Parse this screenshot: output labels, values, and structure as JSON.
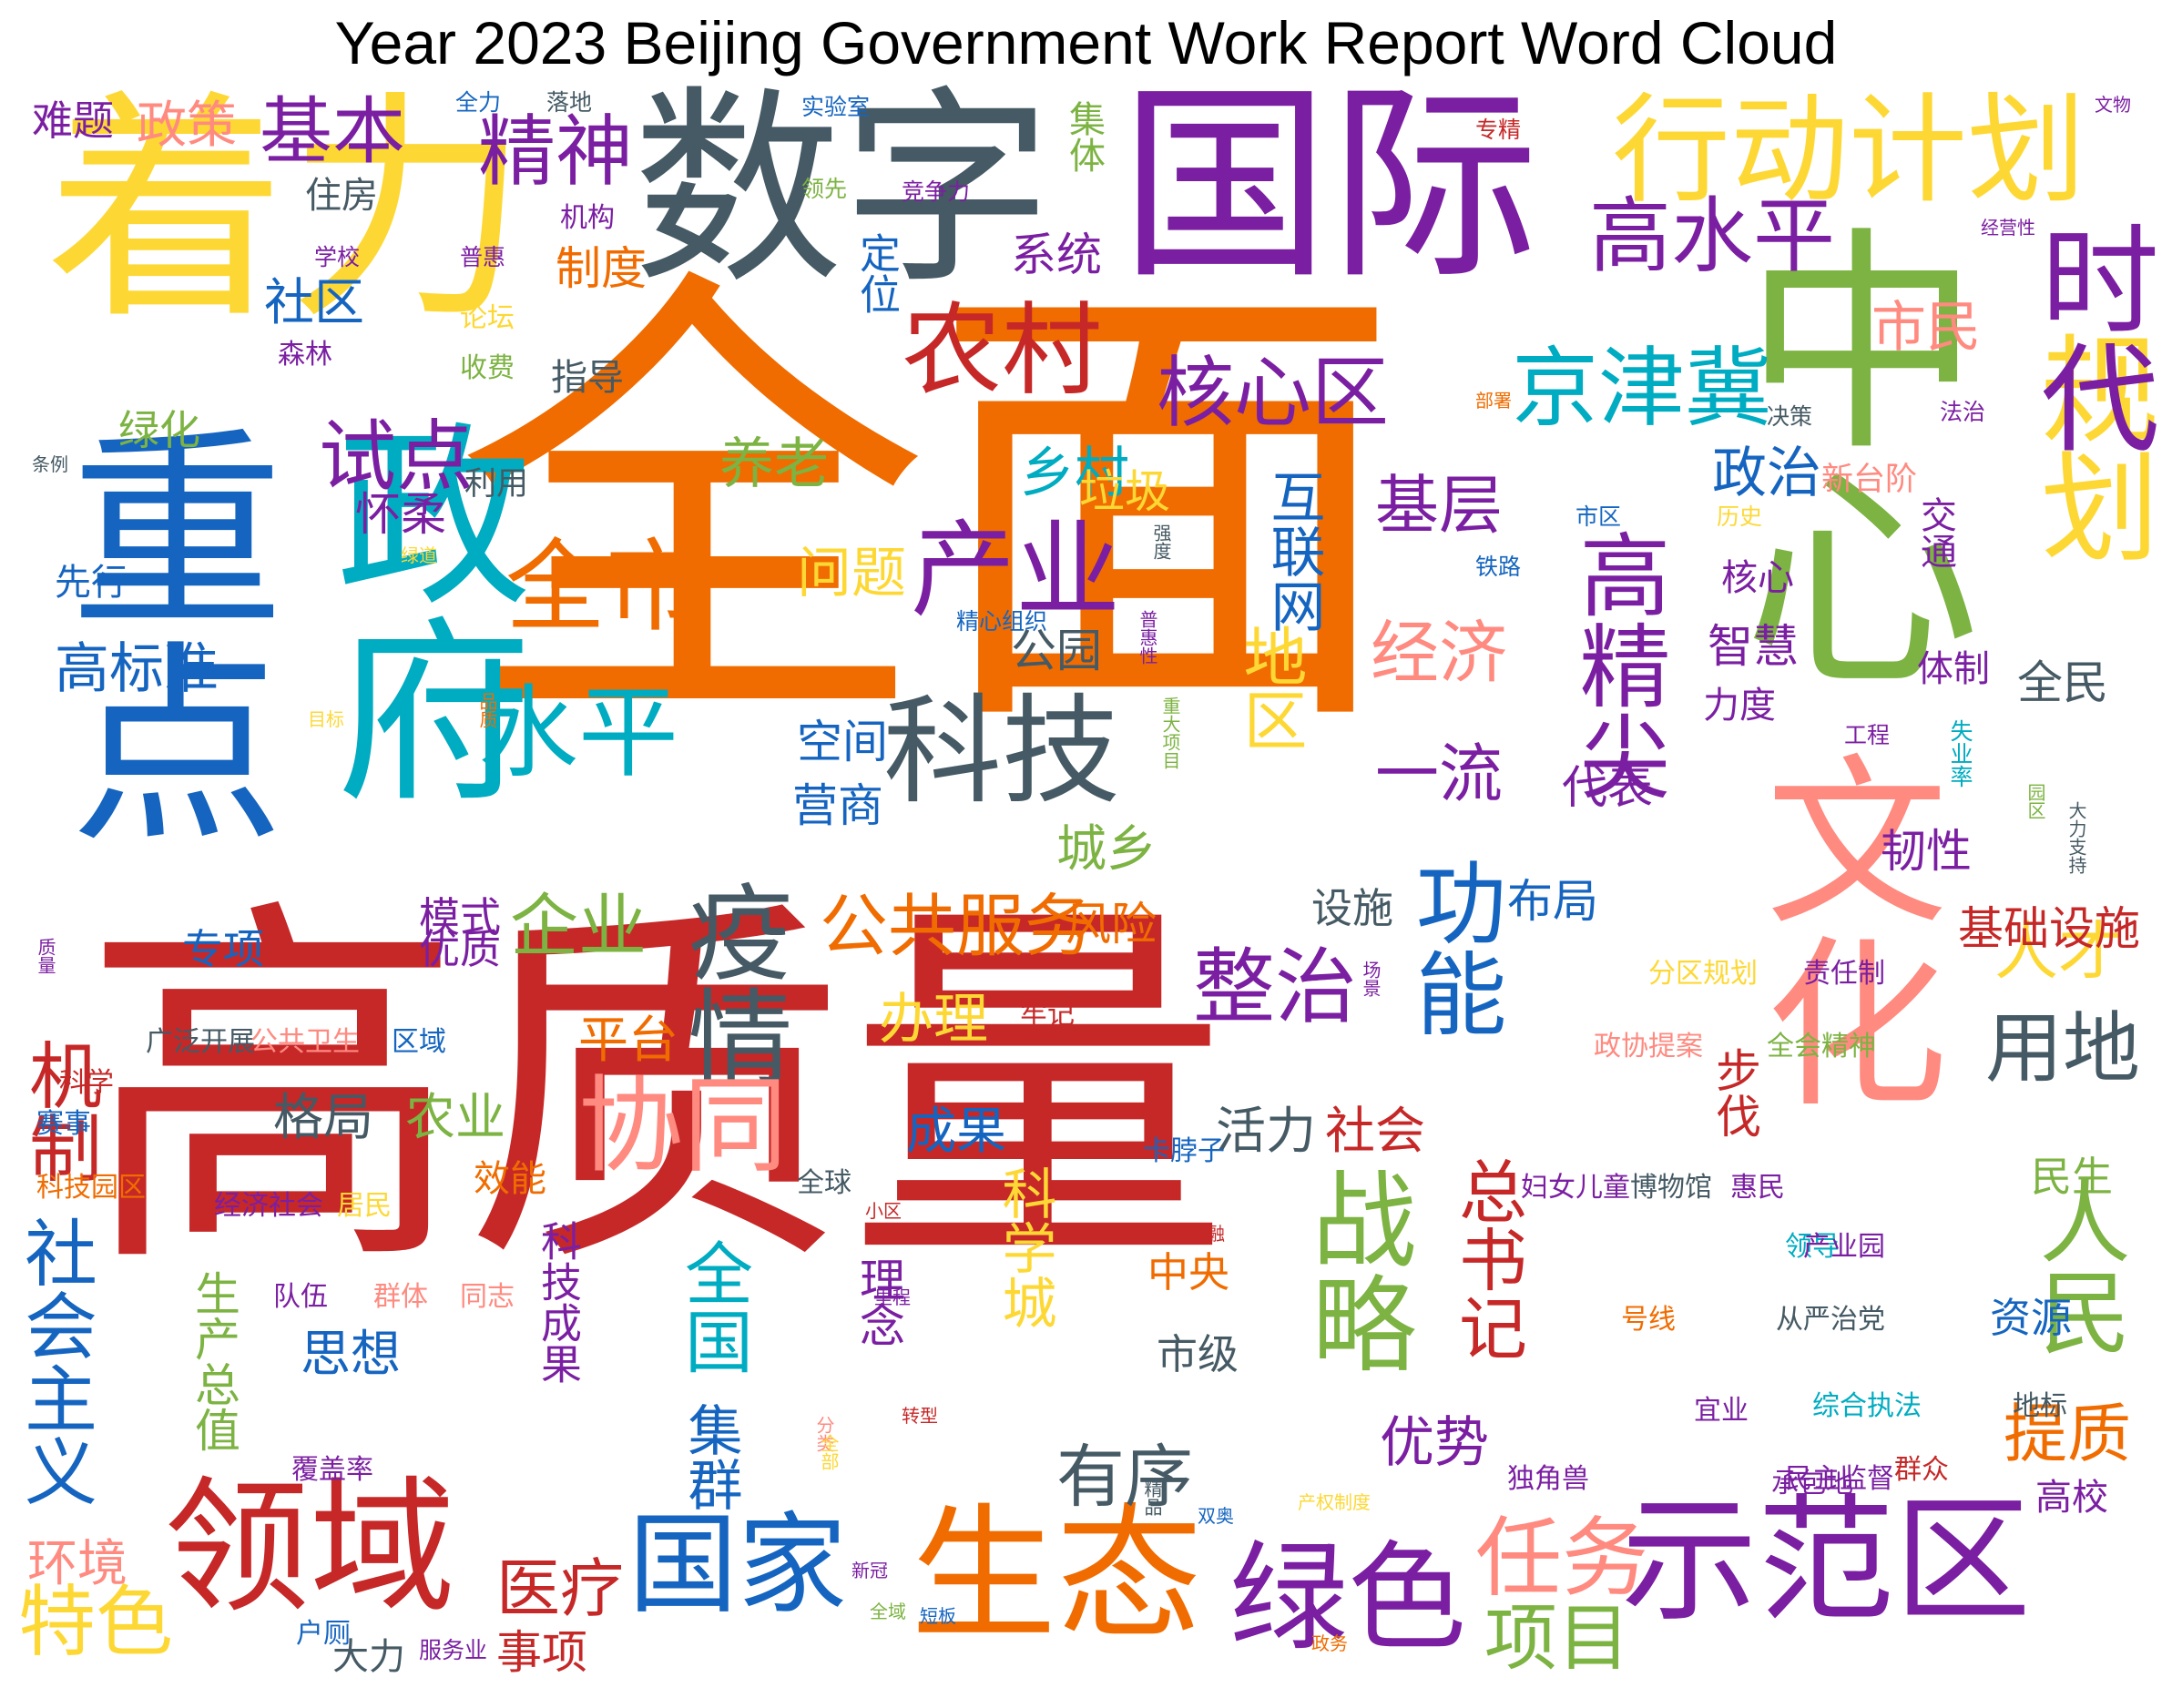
{
  "title": "Year 2023 Beijing Government Work Report Word Cloud",
  "colors": {
    "background": "#ffffff",
    "title": "#000000",
    "palette": [
      "#f06c00",
      "#c62828",
      "#fdd835",
      "#455a64",
      "#7b1fa2",
      "#1565c0",
      "#00acc1",
      "#7cb342",
      "#ff8a80"
    ]
  },
  "words": [
    {
      "text": "全面",
      "color": "#f06c00",
      "vertical": false
    },
    {
      "text": "高质量",
      "color": "#c62828",
      "vertical": false
    },
    {
      "text": "重点",
      "color": "#1565c0",
      "vertical": true
    },
    {
      "text": "着力",
      "color": "#fdd835",
      "vertical": false
    },
    {
      "text": "数字",
      "color": "#455a64",
      "vertical": false
    },
    {
      "text": "国际",
      "color": "#7b1fa2",
      "vertical": false
    },
    {
      "text": "中心",
      "color": "#7cb342",
      "vertical": true
    },
    {
      "text": "政府",
      "color": "#00acc1",
      "vertical": true
    },
    {
      "text": "文化",
      "color": "#ff8a80",
      "vertical": true
    },
    {
      "text": "示范区",
      "color": "#7b1fa2",
      "vertical": false
    },
    {
      "text": "生态",
      "color": "#f06c00",
      "vertical": false
    },
    {
      "text": "领域",
      "color": "#c62828",
      "vertical": false
    },
    {
      "text": "行动计划",
      "color": "#fdd835",
      "vertical": false
    },
    {
      "text": "规划",
      "color": "#fdd835",
      "vertical": true
    },
    {
      "text": "时代",
      "color": "#7b1fa2",
      "vertical": true
    },
    {
      "text": "科技",
      "color": "#455a64",
      "vertical": false
    },
    {
      "text": "绿色",
      "color": "#7b1fa2",
      "vertical": false
    },
    {
      "text": "战略",
      "color": "#7cb342",
      "vertical": true
    },
    {
      "text": "国家",
      "color": "#1565c0",
      "vertical": false
    },
    {
      "text": "疫情",
      "color": "#455a64",
      "vertical": true
    },
    {
      "text": "协同",
      "color": "#ff8a80",
      "vertical": false
    },
    {
      "text": "功能",
      "color": "#1565c0",
      "vertical": true
    },
    {
      "text": "人民",
      "color": "#7cb342",
      "vertical": true
    },
    {
      "text": "全市",
      "color": "#f06c00",
      "vertical": false
    },
    {
      "text": "水平",
      "color": "#00acc1",
      "vertical": false
    },
    {
      "text": "产业",
      "color": "#7b1fa2",
      "vertical": false
    },
    {
      "text": "农村",
      "color": "#c62828",
      "vertical": false
    },
    {
      "text": "京津冀",
      "color": "#00acc1",
      "vertical": false
    },
    {
      "text": "核心区",
      "color": "#7b1fa2",
      "vertical": false
    },
    {
      "text": "高水平",
      "color": "#7b1fa2",
      "vertical": false
    },
    {
      "text": "整治",
      "color": "#7b1fa2",
      "vertical": false
    },
    {
      "text": "任务",
      "color": "#ff8a80",
      "vertical": false
    },
    {
      "text": "精神",
      "color": "#7b1fa2",
      "vertical": false
    },
    {
      "text": "基本",
      "color": "#7b1fa2",
      "vertical": false
    },
    {
      "text": "高精尖",
      "color": "#7b1fa2",
      "vertical": true
    },
    {
      "text": "用地",
      "color": "#455a64",
      "vertical": false
    },
    {
      "text": "试点",
      "color": "#7b1fa2",
      "vertical": false
    },
    {
      "text": "机制",
      "color": "#c62828",
      "vertical": true
    },
    {
      "text": "社会主义",
      "color": "#1565c0",
      "vertical": true
    },
    {
      "text": "企业",
      "color": "#7cb342",
      "vertical": false
    },
    {
      "text": "总书记",
      "color": "#c62828",
      "vertical": true
    },
    {
      "text": "项目",
      "color": "#7cb342",
      "vertical": false
    },
    {
      "text": "特色",
      "color": "#fdd835",
      "vertical": false
    },
    {
      "text": "全国",
      "color": "#00acc1",
      "vertical": true
    },
    {
      "text": "市民",
      "color": "#ff8a80",
      "vertical": false
    },
    {
      "text": "政治",
      "color": "#1565c0",
      "vertical": false
    },
    {
      "text": "乡村",
      "color": "#00acc1",
      "vertical": false
    },
    {
      "text": "公共服务",
      "color": "#f06c00",
      "vertical": false
    },
    {
      "text": "有序",
      "color": "#455a64",
      "vertical": false
    },
    {
      "text": "提质",
      "color": "#f06c00",
      "vertical": false
    },
    {
      "text": "人才",
      "color": "#fdd835",
      "vertical": false
    },
    {
      "text": "医疗",
      "color": "#c62828",
      "vertical": false
    },
    {
      "text": "优势",
      "color": "#7b1fa2",
      "vertical": false
    },
    {
      "text": "经济",
      "color": "#ff8a80",
      "vertical": false
    },
    {
      "text": "基层",
      "color": "#7b1fa2",
      "vertical": false
    },
    {
      "text": "一流",
      "color": "#7b1fa2",
      "vertical": false
    },
    {
      "text": "地区",
      "color": "#fdd835",
      "vertical": true
    },
    {
      "text": "互联网",
      "color": "#1565c0",
      "vertical": true
    },
    {
      "text": "养老",
      "color": "#7cb342",
      "vertical": false
    },
    {
      "text": "社区",
      "color": "#1565c0",
      "vertical": false
    },
    {
      "text": "政策",
      "color": "#ff8a80",
      "vertical": false
    },
    {
      "text": "集群",
      "color": "#1565c0",
      "vertical": true
    },
    {
      "text": "科学城",
      "color": "#fdd835",
      "vertical": true
    },
    {
      "text": "格局",
      "color": "#455a64",
      "vertical": false
    },
    {
      "text": "农业",
      "color": "#7cb342",
      "vertical": false
    },
    {
      "text": "思想",
      "color": "#1565c0",
      "vertical": false
    },
    {
      "text": "成果",
      "color": "#1565c0",
      "vertical": false
    },
    {
      "text": "活力",
      "color": "#455a64",
      "vertical": false
    },
    {
      "text": "社会",
      "color": "#c62828",
      "vertical": false
    },
    {
      "text": "办理",
      "color": "#fdd835",
      "vertical": false
    },
    {
      "text": "平台",
      "color": "#f06c00",
      "vertical": false
    },
    {
      "text": "城乡",
      "color": "#7cb342",
      "vertical": false
    },
    {
      "text": "问题",
      "color": "#fdd835",
      "vertical": false
    },
    {
      "text": "公园",
      "color": "#455a64",
      "vertical": false
    },
    {
      "text": "空间",
      "color": "#1565c0",
      "vertical": false
    },
    {
      "text": "营商",
      "color": "#1565c0",
      "vertical": false
    },
    {
      "text": "高标准",
      "color": "#1565c0",
      "vertical": false
    },
    {
      "text": "怀柔",
      "color": "#7b1fa2",
      "vertical": false
    },
    {
      "text": "系统",
      "color": "#7b1fa2",
      "vertical": false
    },
    {
      "text": "定位",
      "color": "#1565c0",
      "vertical": true
    },
    {
      "text": "制度",
      "color": "#f06c00",
      "vertical": false
    },
    {
      "text": "垃圾",
      "color": "#fdd835",
      "vertical": false
    },
    {
      "text": "全民",
      "color": "#455a64",
      "vertical": false
    },
    {
      "text": "代表",
      "color": "#7b1fa2",
      "vertical": false
    },
    {
      "text": "智慧",
      "color": "#7b1fa2",
      "vertical": false
    },
    {
      "text": "韧性",
      "color": "#7b1fa2",
      "vertical": false
    },
    {
      "text": "步伐",
      "color": "#c62828",
      "vertical": true
    },
    {
      "text": "基础设施",
      "color": "#c62828",
      "vertical": false
    },
    {
      "text": "布局",
      "color": "#1565c0",
      "vertical": false
    },
    {
      "text": "设施",
      "color": "#455a64",
      "vertical": false
    },
    {
      "text": "风险",
      "color": "#f06c00",
      "vertical": false
    },
    {
      "text": "模式",
      "color": "#7b1fa2",
      "vertical": false
    },
    {
      "text": "优质",
      "color": "#7b1fa2",
      "vertical": false
    },
    {
      "text": "专项",
      "color": "#1565c0",
      "vertical": false
    },
    {
      "text": "环境",
      "color": "#ff8a80",
      "vertical": false
    },
    {
      "text": "大力",
      "color": "#455a64",
      "vertical": false
    },
    {
      "text": "事项",
      "color": "#c62828",
      "vertical": false
    },
    {
      "text": "资源",
      "color": "#1565c0",
      "vertical": false
    },
    {
      "text": "市级",
      "color": "#455a64",
      "vertical": false
    },
    {
      "text": "中央",
      "color": "#f06c00",
      "vertical": false
    },
    {
      "text": "理念",
      "color": "#7b1fa2",
      "vertical": true
    },
    {
      "text": "科技成果",
      "color": "#7b1fa2",
      "vertical": true
    },
    {
      "text": "生产总值",
      "color": "#7cb342",
      "vertical": true
    },
    {
      "text": "高校",
      "color": "#7b1fa2",
      "vertical": false
    },
    {
      "text": "民生",
      "color": "#7cb342",
      "vertical": false
    },
    {
      "text": "体制",
      "color": "#7b1fa2",
      "vertical": false
    },
    {
      "text": "交通",
      "color": "#7b1fa2",
      "vertical": true
    },
    {
      "text": "力度",
      "color": "#7b1fa2",
      "vertical": false
    },
    {
      "text": "绿化",
      "color": "#7cb342",
      "vertical": false
    },
    {
      "text": "难题",
      "color": "#7b1fa2",
      "vertical": false
    },
    {
      "text": "住房",
      "color": "#455a64",
      "vertical": false
    },
    {
      "text": "集体",
      "color": "#7cb342",
      "vertical": true
    },
    {
      "text": "指导",
      "color": "#455a64",
      "vertical": false
    },
    {
      "text": "利用",
      "color": "#455a64",
      "vertical": false
    },
    {
      "text": "先行",
      "color": "#1565c0",
      "vertical": false
    },
    {
      "text": "效能",
      "color": "#f06c00",
      "vertical": false
    },
    {
      "text": "核心",
      "color": "#7b1fa2",
      "vertical": false
    },
    {
      "text": "新台阶",
      "color": "#ff8a80",
      "vertical": false
    },
    {
      "text": "政协提案",
      "color": "#ff8a80",
      "vertical": false
    },
    {
      "text": "全会精神",
      "color": "#7cb342",
      "vertical": false
    },
    {
      "text": "分区规划",
      "color": "#fdd835",
      "vertical": false
    },
    {
      "text": "责任制",
      "color": "#7b1fa2",
      "vertical": false
    },
    {
      "text": "领导",
      "color": "#00acc1",
      "vertical": false
    },
    {
      "text": "产业园",
      "color": "#7b1fa2",
      "vertical": false
    },
    {
      "text": "号线",
      "color": "#f06c00",
      "vertical": false
    },
    {
      "text": "从严治党",
      "color": "#455a64",
      "vertical": false
    },
    {
      "text": "宜业",
      "color": "#7b1fa2",
      "vertical": false
    },
    {
      "text": "综合执法",
      "color": "#00acc1",
      "vertical": false
    },
    {
      "text": "承包地",
      "color": "#7b1fa2",
      "vertical": false
    },
    {
      "text": "独角兽",
      "color": "#7b1fa2",
      "vertical": false
    },
    {
      "text": "民主监督",
      "color": "#7b1fa2",
      "vertical": false
    },
    {
      "text": "群众",
      "color": "#c62828",
      "vertical": false
    },
    {
      "text": "地标",
      "color": "#455a64",
      "vertical": false
    },
    {
      "text": "妇女儿童",
      "color": "#7b1fa2",
      "vertical": false
    },
    {
      "text": "博物馆",
      "color": "#455a64",
      "vertical": false
    },
    {
      "text": "惠民",
      "color": "#7b1fa2",
      "vertical": false
    },
    {
      "text": "卡脖子",
      "color": "#1565c0",
      "vertical": false
    },
    {
      "text": "广泛开展",
      "color": "#455a64",
      "vertical": false
    },
    {
      "text": "公共卫生",
      "color": "#ff8a80",
      "vertical": false
    },
    {
      "text": "区域",
      "color": "#1565c0",
      "vertical": false
    },
    {
      "text": "牢记",
      "color": "#c62828",
      "vertical": false
    },
    {
      "text": "科学",
      "color": "#c62828",
      "vertical": false
    },
    {
      "text": "赛事",
      "color": "#1565c0",
      "vertical": false
    },
    {
      "text": "科技园区",
      "color": "#f06c00",
      "vertical": false
    },
    {
      "text": "经济社会",
      "color": "#7b1fa2",
      "vertical": false
    },
    {
      "text": "居民",
      "color": "#fdd835",
      "vertical": false
    },
    {
      "text": "队伍",
      "color": "#7b1fa2",
      "vertical": false
    },
    {
      "text": "群体",
      "color": "#ff8a80",
      "vertical": false
    },
    {
      "text": "同志",
      "color": "#ff8a80",
      "vertical": false
    },
    {
      "text": "覆盖率",
      "color": "#7b1fa2",
      "vertical": false
    },
    {
      "text": "户厕",
      "color": "#1565c0",
      "vertical": false
    },
    {
      "text": "服务业",
      "color": "#7b1fa2",
      "vertical": false
    },
    {
      "text": "全球",
      "color": "#455a64",
      "vertical": false
    },
    {
      "text": "精心组织",
      "color": "#1565c0",
      "vertical": false
    },
    {
      "text": "落地",
      "color": "#455a64",
      "vertical": false
    },
    {
      "text": "全力",
      "color": "#1565c0",
      "vertical": false
    },
    {
      "text": "实验室",
      "color": "#1565c0",
      "vertical": false
    },
    {
      "text": "领先",
      "color": "#7cb342",
      "vertical": false
    },
    {
      "text": "竞争力",
      "color": "#7b1fa2",
      "vertical": false
    },
    {
      "text": "专精",
      "color": "#c62828",
      "vertical": false
    },
    {
      "text": "文物",
      "color": "#7b1fa2",
      "vertical": false
    },
    {
      "text": "经营性",
      "color": "#7b1fa2",
      "vertical": false
    },
    {
      "text": "机构",
      "color": "#7b1fa2",
      "vertical": false
    },
    {
      "text": "学校",
      "color": "#7b1fa2",
      "vertical": false
    },
    {
      "text": "普惠",
      "color": "#7b1fa2",
      "vertical": false
    },
    {
      "text": "论坛",
      "color": "#fdd835",
      "vertical": false
    },
    {
      "text": "森林",
      "color": "#7b1fa2",
      "vertical": false
    },
    {
      "text": "收费",
      "color": "#7cb342",
      "vertical": false
    },
    {
      "text": "部署",
      "color": "#f06c00",
      "vertical": false
    },
    {
      "text": "决策",
      "color": "#455a64",
      "vertical": false
    },
    {
      "text": "法治",
      "color": "#7b1fa2",
      "vertical": false
    },
    {
      "text": "历史",
      "color": "#fdd835",
      "vertical": false
    },
    {
      "text": "市区",
      "color": "#1565c0",
      "vertical": false
    },
    {
      "text": "铁路",
      "color": "#1565c0",
      "vertical": false
    },
    {
      "text": "工程",
      "color": "#7b1fa2",
      "vertical": false
    },
    {
      "text": "失业率",
      "color": "#00acc1",
      "vertical": true
    },
    {
      "text": "园区",
      "color": "#7cb342",
      "vertical": true
    },
    {
      "text": "大力支持",
      "color": "#455a64",
      "vertical": true
    },
    {
      "text": "条例",
      "color": "#455a64",
      "vertical": false
    },
    {
      "text": "绿道",
      "color": "#fdd835",
      "vertical": false
    },
    {
      "text": "品质",
      "color": "#f06c00",
      "vertical": true
    },
    {
      "text": "目标",
      "color": "#fdd835",
      "vertical": false
    },
    {
      "text": "质量",
      "color": "#7b1fa2",
      "vertical": true
    },
    {
      "text": "强度",
      "color": "#455a64",
      "vertical": true
    },
    {
      "text": "普惠性",
      "color": "#7b1fa2",
      "vertical": true
    },
    {
      "text": "重大项目",
      "color": "#7cb342",
      "vertical": true
    },
    {
      "text": "场景",
      "color": "#7b1fa2",
      "vertical": true
    },
    {
      "text": "小区",
      "color": "#c62828",
      "vertical": false
    },
    {
      "text": "金融",
      "color": "#c62828",
      "vertical": false
    },
    {
      "text": "里程",
      "color": "#7b1fa2",
      "vertical": false
    },
    {
      "text": "转型",
      "color": "#c62828",
      "vertical": false
    },
    {
      "text": "分类",
      "color": "#ff8a80",
      "vertical": true
    },
    {
      "text": "全部",
      "color": "#fdd835",
      "vertical": true
    },
    {
      "text": "新冠",
      "color": "#7b1fa2",
      "vertical": false
    },
    {
      "text": "全域",
      "color": "#7cb342",
      "vertical": false
    },
    {
      "text": "短板",
      "color": "#1565c0",
      "vertical": false
    },
    {
      "text": "双奥",
      "color": "#1565c0",
      "vertical": false
    },
    {
      "text": "产权制度",
      "color": "#fdd835",
      "vertical": false
    },
    {
      "text": "精品",
      "color": "#455a64",
      "vertical": true
    },
    {
      "text": "政务",
      "color": "#f06c00",
      "vertical": false
    }
  ]
}
